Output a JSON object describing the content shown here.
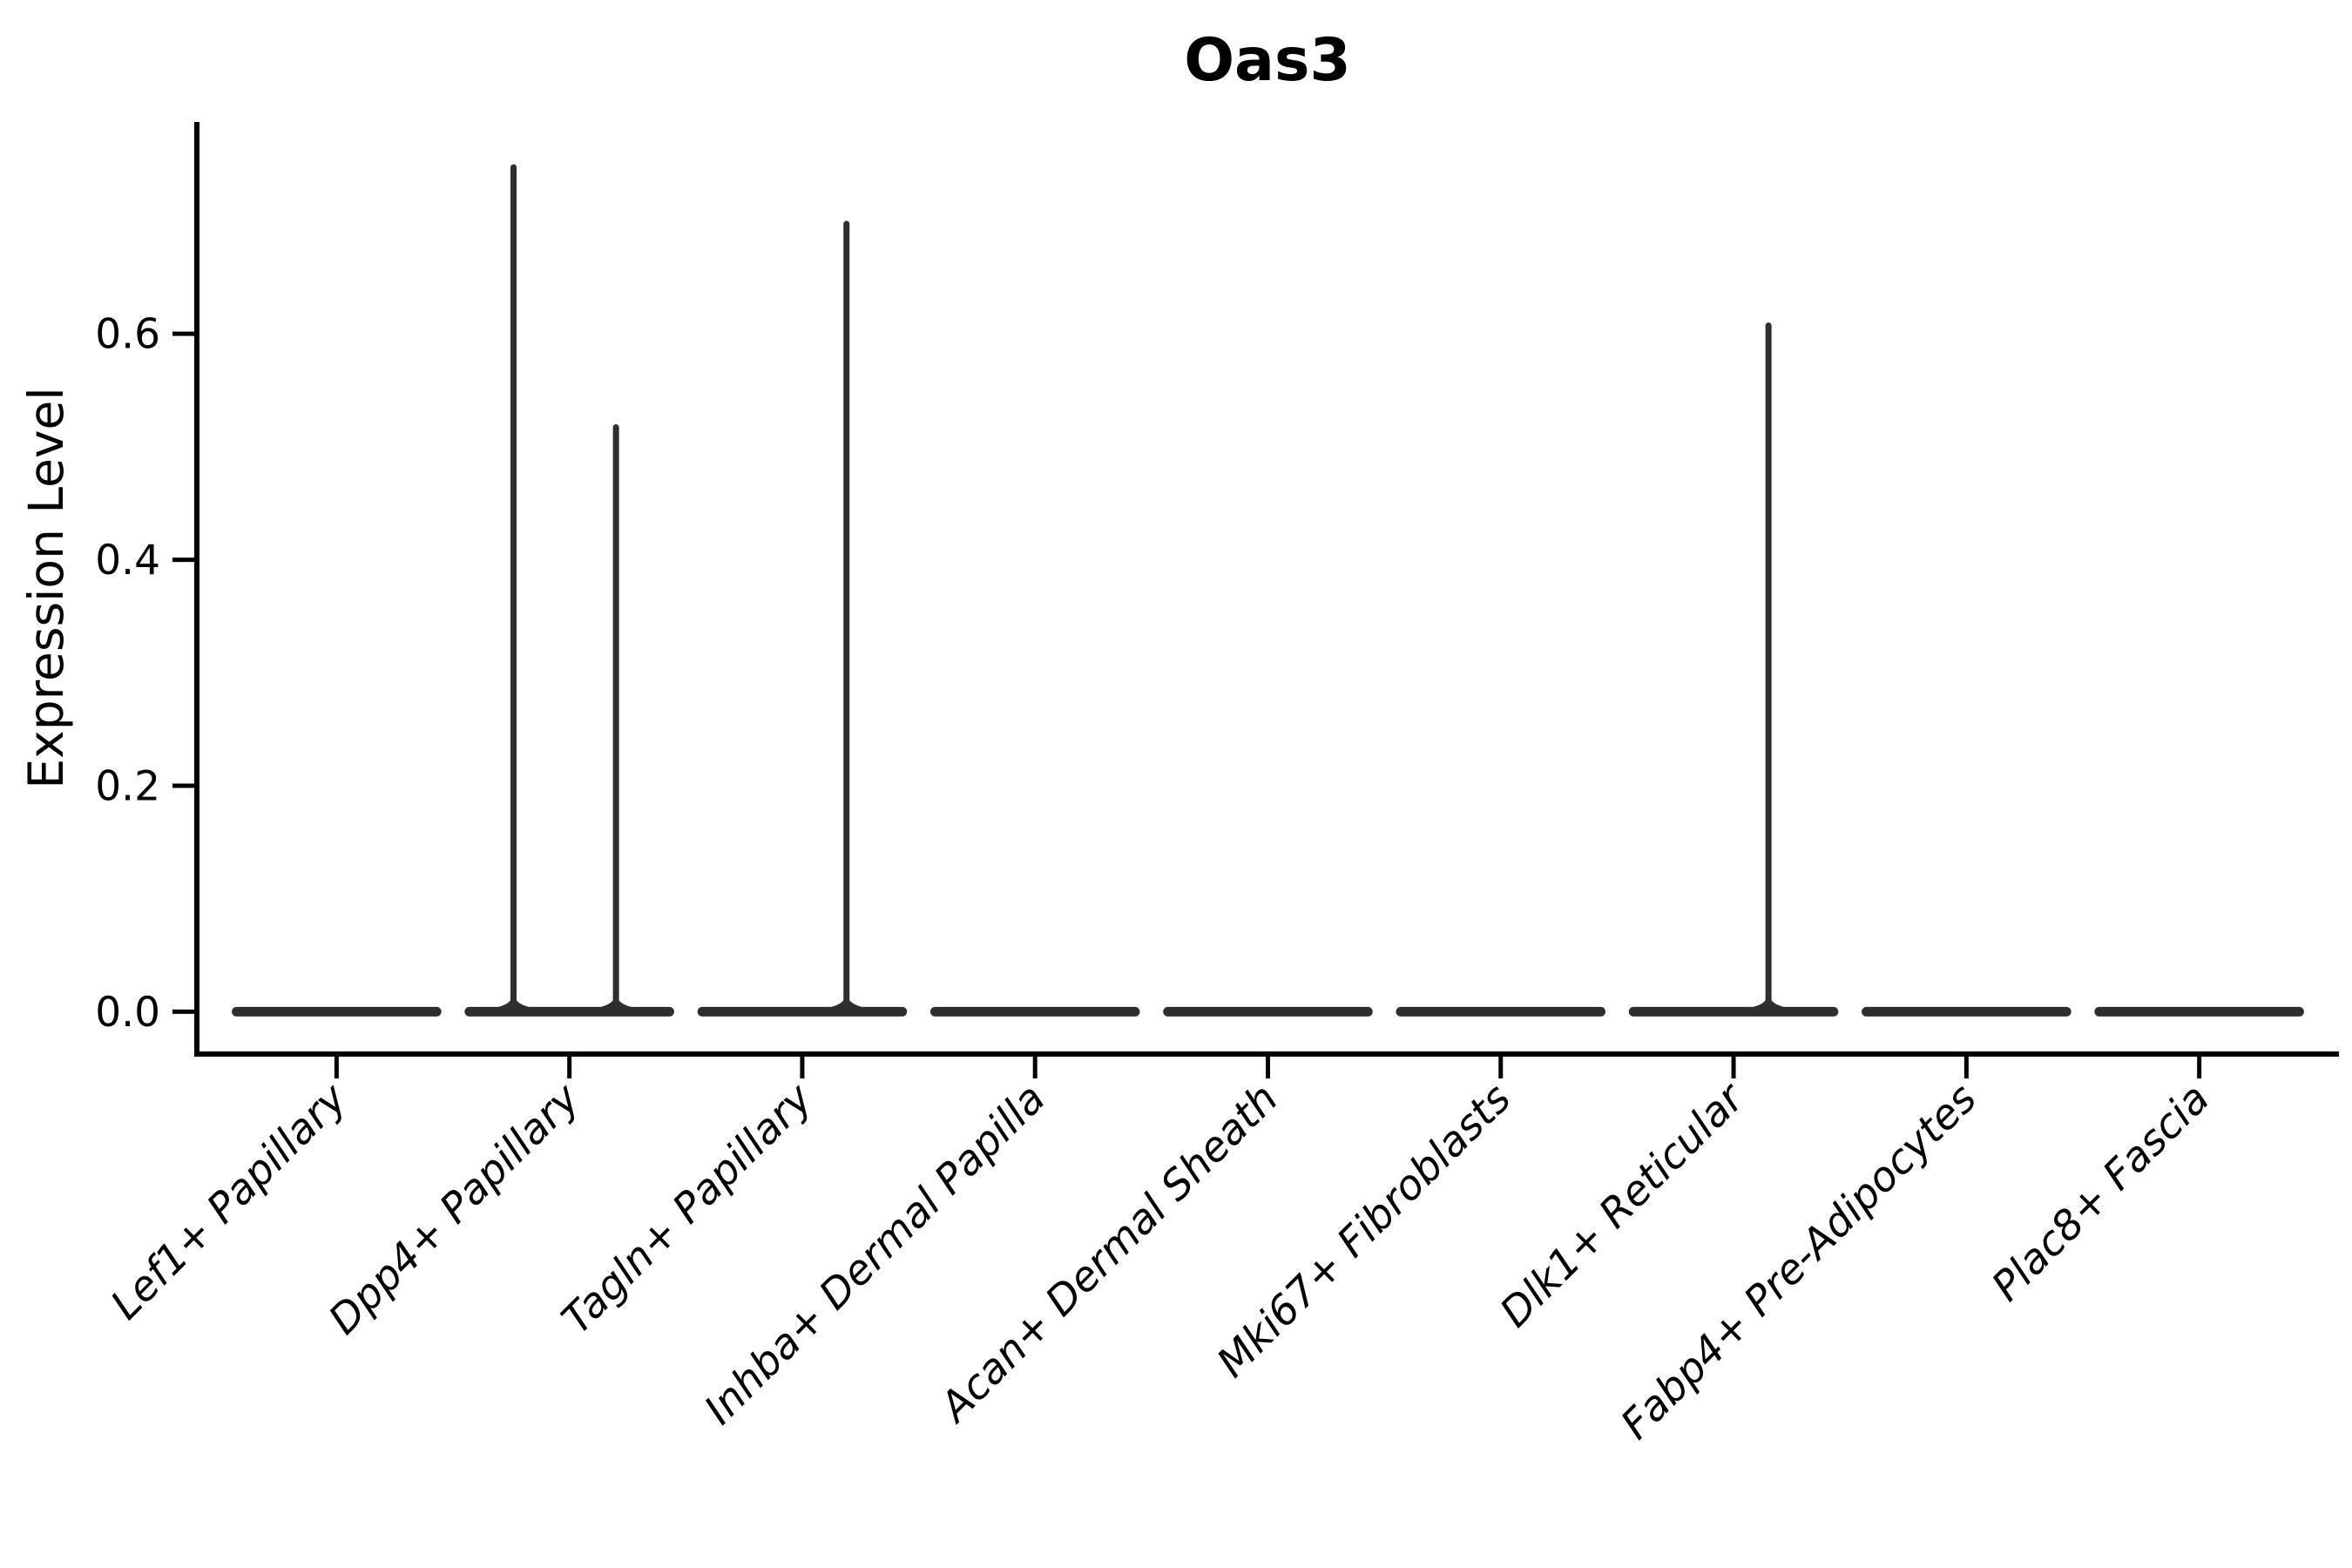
{
  "figure": {
    "background": "#ffffff"
  },
  "chart_data": {
    "type": "violin",
    "title": "Oas3",
    "ylabel": "Expression Level",
    "xlabel": "",
    "grid": false,
    "legend": "none",
    "yticks": [
      0.0,
      0.2,
      0.4,
      0.6
    ],
    "ytick_labels": [
      "0.0",
      "0.2",
      "0.4",
      "0.6"
    ],
    "ylim": [
      -0.0375,
      0.7875
    ],
    "xlim": [
      0.4,
      9.6
    ],
    "categories": [
      "Lef1+ Papillary",
      "Dpp4+ Papillary",
      "Tagln+ Papillary",
      "Inhba+ Dermal Papilla",
      "Acan+ Dermal Sheath",
      "Mki67+ Fibroblasts",
      "Dlk1+ Reticular",
      "Fabp4+ Pre-Adipocytes",
      "Plac8+ Fascia"
    ],
    "violin_color": "#2e2e2e",
    "axis_color": "#000000",
    "violins": [
      {
        "category": "Lef1+ Papillary",
        "x": 1,
        "body_value": 0.0,
        "body_halfwidth": 0.45,
        "spikes": []
      },
      {
        "category": "Dpp4+ Papillary",
        "x": 2,
        "body_value": 0.0,
        "body_halfwidth": 0.45,
        "spikes": [
          {
            "x_offset": -0.24,
            "peak_value": 0.75
          },
          {
            "x_offset": 0.2,
            "peak_value": 0.52
          }
        ]
      },
      {
        "category": "Tagln+ Papillary",
        "x": 3,
        "body_value": 0.0,
        "body_halfwidth": 0.45,
        "spikes": [
          {
            "x_offset": 0.19,
            "peak_value": 0.7
          }
        ]
      },
      {
        "category": "Inhba+ Dermal Papilla",
        "x": 4,
        "body_value": 0.0,
        "body_halfwidth": 0.45,
        "spikes": []
      },
      {
        "category": "Acan+ Dermal Sheath",
        "x": 5,
        "body_value": 0.0,
        "body_halfwidth": 0.45,
        "spikes": []
      },
      {
        "category": "Mki67+ Fibroblasts",
        "x": 6,
        "body_value": 0.0,
        "body_halfwidth": 0.45,
        "spikes": []
      },
      {
        "category": "Dlk1+ Reticular",
        "x": 7,
        "body_value": 0.0,
        "body_halfwidth": 0.45,
        "spikes": [
          {
            "x_offset": 0.15,
            "peak_value": 0.61
          }
        ]
      },
      {
        "category": "Fabp4+ Pre-Adipocytes",
        "x": 8,
        "body_value": 0.0,
        "body_halfwidth": 0.45,
        "spikes": []
      },
      {
        "category": "Plac8+ Fascia",
        "x": 9,
        "body_value": 0.0,
        "body_halfwidth": 0.45,
        "spikes": []
      }
    ]
  }
}
